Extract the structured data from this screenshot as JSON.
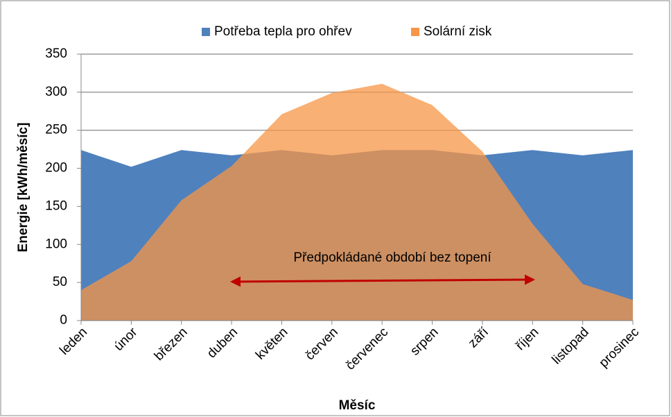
{
  "chart_data": {
    "type": "area",
    "xlabel": "Měsíc",
    "ylabel": "Energie [kWh/měsíc]",
    "categories": [
      "leden",
      "únor",
      "březen",
      "duben",
      "květen",
      "červen",
      "červenec",
      "srpen",
      "září",
      "říjen",
      "listopad",
      "prosinec"
    ],
    "series": [
      {
        "name": "Potřeba tepla pro ohřev",
        "color": "#4f81bd",
        "values": [
          224,
          202,
          224,
          217,
          224,
          217,
          224,
          224,
          217,
          224,
          217,
          224
        ]
      },
      {
        "name": "Solární zisk",
        "color": "#f79646",
        "values": [
          40,
          78,
          158,
          203,
          271,
          299,
          311,
          283,
          222,
          127,
          48,
          27
        ]
      }
    ],
    "ylim": [
      0,
      350
    ],
    "yticks": [
      0,
      50,
      100,
      150,
      200,
      250,
      300,
      350
    ],
    "grid": true,
    "legend": "top",
    "annotation": "Předpokládané období bez topení"
  }
}
